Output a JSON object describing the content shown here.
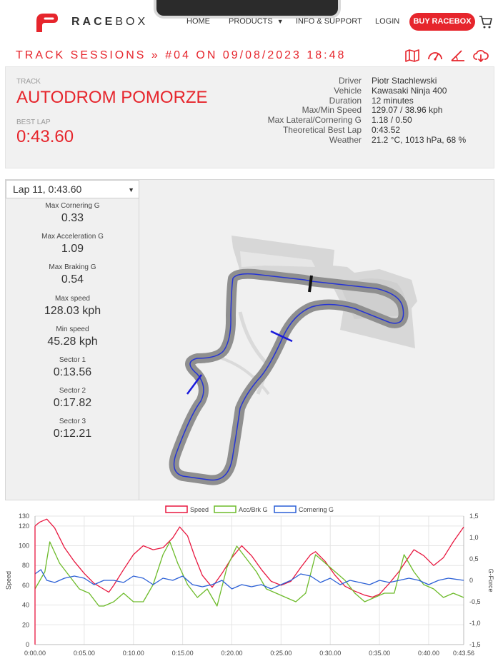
{
  "header": {
    "brand_a": "RACE",
    "brand_b": "BOX",
    "nav": [
      {
        "label": "HOME"
      },
      {
        "label": "PRODUCTS"
      },
      {
        "label": "INFO & SUPPORT"
      },
      {
        "label": "LOGIN"
      }
    ],
    "buy_label": "BUY RACEBOX"
  },
  "session": {
    "title": "TRACK SESSIONS » #04 ON 09/08/2023 18:48",
    "icons": [
      "map-icon",
      "speedometer-icon",
      "angle-icon",
      "cloud-download-icon"
    ]
  },
  "info": {
    "track_label": "TRACK",
    "track_name": "AUTODROM POMORZE",
    "best_label": "BEST LAP",
    "best_value": "0:43.60",
    "stats": [
      {
        "k": "Driver",
        "v": "Piotr Stachlewski"
      },
      {
        "k": "Vehicle",
        "v": "Kawasaki Ninja 400"
      },
      {
        "k": "Duration",
        "v": "12 minutes"
      },
      {
        "k": "Max/Min Speed",
        "v": "129.07 / 38.96 kph"
      },
      {
        "k": "Max Lateral/Cornering G",
        "v": "1.18 / 0.50"
      },
      {
        "k": "Theoretical Best Lap",
        "v": "0:43.52"
      },
      {
        "k": "Weather",
        "v": "21.2 °C, 1013 hPa, 68 %"
      }
    ]
  },
  "lap": {
    "selected": "Lap 11, 0:43.60",
    "stats": [
      {
        "k": "Max Cornering G",
        "v": "0.33"
      },
      {
        "k": "Max Acceleration G",
        "v": "1.09"
      },
      {
        "k": "Max Braking G",
        "v": "0.54"
      },
      {
        "k": "Max speed",
        "v": "128.03 kph"
      },
      {
        "k": "Min speed",
        "v": "45.28 kph"
      },
      {
        "k": "Sector 1",
        "v": "0:13.56"
      },
      {
        "k": "Sector 2",
        "v": "0:17.82"
      },
      {
        "k": "Sector 3",
        "v": "0:12.21"
      }
    ]
  },
  "colors": {
    "accent": "#e6252c",
    "speed": "#e8173f",
    "accbrk": "#6dbb2a",
    "cornering": "#2a5fd6"
  },
  "chart_data": {
    "type": "line",
    "legend": [
      "Speed",
      "Acc/Brk G",
      "Cornering G"
    ],
    "legend_position": "top",
    "xlabel": "",
    "ylabel_left": "Speed",
    "ylabel_right": "G-Force",
    "x_ticks": [
      "0:00.00",
      "0:05.00",
      "0:10.00",
      "0:15.00",
      "0:20.00",
      "0:25.00",
      "0:30.00",
      "0:35.00",
      "0:40.00",
      "0:43.56"
    ],
    "y_left_ticks": [
      "0",
      "20",
      "40",
      "60",
      "80",
      "100",
      "120",
      "130"
    ],
    "y_right_ticks": [
      "-1,5",
      "-1,0",
      "-0,5",
      "0",
      "0,5",
      "1,0",
      "1,5"
    ],
    "y_left_range": [
      0,
      130
    ],
    "y_right_range": [
      -1.5,
      1.5
    ],
    "x_range": [
      0,
      43.56
    ],
    "grid": true,
    "series": [
      {
        "name": "Speed",
        "axis": "left",
        "x": [
          0,
          0.5,
          1.2,
          2,
          3,
          4,
          5,
          6,
          7,
          7.5,
          8,
          9,
          10,
          11,
          12,
          13,
          14,
          14.7,
          15.5,
          16.2,
          17,
          18,
          19,
          20,
          21,
          22,
          23,
          24,
          25,
          26,
          27,
          28,
          28.5,
          29.5,
          30.5,
          31.5,
          32.5,
          33.5,
          34.3,
          35,
          36,
          37,
          37.8,
          38.5,
          39.5,
          40.5,
          41.5,
          42.5,
          43.56
        ],
        "values": [
          120,
          124,
          127,
          118,
          98,
          84,
          72,
          62,
          56,
          53,
          60,
          76,
          91,
          100,
          96,
          98,
          108,
          119,
          110,
          90,
          70,
          58,
          72,
          88,
          100,
          90,
          76,
          64,
          60,
          64,
          78,
          91,
          94,
          84,
          70,
          59,
          54,
          50,
          48,
          51,
          62,
          74,
          86,
          96,
          90,
          80,
          88,
          104,
          119
        ]
      },
      {
        "name": "Acc/Brk G",
        "axis": "right",
        "x": [
          0,
          1,
          1.5,
          2.5,
          3.5,
          4.5,
          5.5,
          6.5,
          7,
          8,
          9,
          10,
          11,
          12,
          13,
          13.7,
          14.5,
          15.5,
          16.5,
          17.5,
          18.5,
          19.5,
          20.5,
          21.5,
          22.5,
          23.5,
          24.5,
          25.5,
          26.5,
          27.5,
          28.5,
          29.5,
          30.5,
          31.5,
          32.5,
          33.5,
          34.5,
          35.5,
          36.5,
          37.5,
          38.5,
          39.5,
          40.5,
          41.5,
          42.5,
          43.56
        ],
        "values": [
          -0.2,
          0.2,
          0.9,
          0.4,
          0.1,
          -0.2,
          -0.3,
          -0.6,
          -0.6,
          -0.5,
          -0.3,
          -0.5,
          -0.5,
          -0.1,
          0.6,
          0.9,
          0.4,
          -0.1,
          -0.4,
          -0.2,
          -0.6,
          0.3,
          0.8,
          0.5,
          0.2,
          -0.2,
          -0.3,
          -0.4,
          -0.5,
          -0.3,
          0.6,
          0.4,
          0.2,
          0.0,
          -0.3,
          -0.5,
          -0.4,
          -0.3,
          -0.3,
          0.6,
          0.2,
          -0.1,
          -0.2,
          -0.4,
          -0.3,
          -0.4
        ]
      },
      {
        "name": "Cornering G",
        "axis": "right",
        "x": [
          0,
          0.6,
          1.2,
          2,
          3,
          4,
          5,
          6,
          7,
          8,
          9,
          10,
          11,
          12,
          13,
          14,
          15,
          16,
          17,
          18,
          19,
          20,
          21,
          22,
          23,
          24,
          25,
          26,
          27,
          28,
          29,
          30,
          31,
          32,
          33,
          34,
          35,
          36,
          37,
          38,
          39,
          40,
          41,
          42,
          43.56
        ],
        "values": [
          0.15,
          0.25,
          0.0,
          -0.05,
          0.05,
          0.1,
          0.05,
          -0.1,
          0.0,
          0.0,
          -0.05,
          0.1,
          0.05,
          -0.1,
          0.05,
          0.0,
          0.1,
          -0.1,
          -0.15,
          -0.1,
          0.0,
          -0.2,
          -0.1,
          -0.15,
          -0.1,
          -0.2,
          -0.1,
          0.0,
          0.15,
          0.1,
          -0.05,
          0.05,
          -0.1,
          0.0,
          -0.05,
          -0.1,
          0.0,
          -0.05,
          0.0,
          0.05,
          0.0,
          -0.1,
          0.0,
          0.05,
          0.0
        ]
      }
    ]
  }
}
